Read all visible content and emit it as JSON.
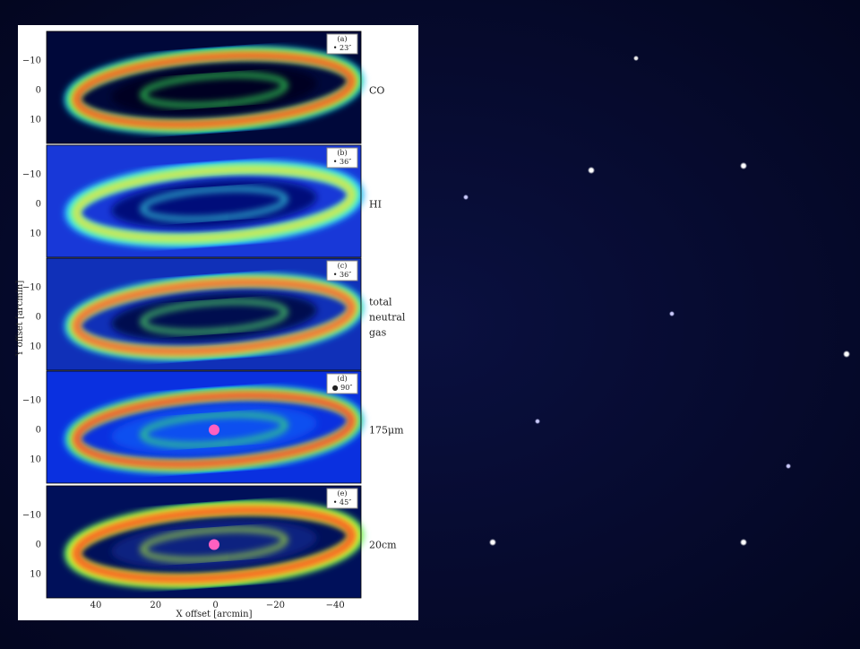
{
  "figure": {
    "panels": [
      {
        "tag": "(a)",
        "beam": "• 23″",
        "side_label": [
          "CO"
        ],
        "yticks": [
          "−10",
          "0",
          "10"
        ]
      },
      {
        "tag": "(b)",
        "beam": "• 36″",
        "side_label": [
          "HI"
        ],
        "yticks": [
          "−10",
          "0",
          "10"
        ]
      },
      {
        "tag": "(c)",
        "beam": "• 36″",
        "side_label": [
          "total",
          "neutral",
          "gas"
        ],
        "yticks": [
          "−10",
          "0",
          "10"
        ]
      },
      {
        "tag": "(d)",
        "beam": "● 90″",
        "side_label": [
          "175μm"
        ],
        "yticks": [
          "−10",
          "0",
          "10"
        ]
      },
      {
        "tag": "(e)",
        "beam": "• 45″",
        "side_label": [
          "20cm"
        ],
        "yticks": [
          "−10",
          "0",
          "10"
        ]
      }
    ],
    "xticks": [
      "40",
      "20",
      "0",
      "−20",
      "−40"
    ],
    "xlabel": "X offset [arcmin]",
    "ylabel": "Y offset [arcmin]"
  }
}
